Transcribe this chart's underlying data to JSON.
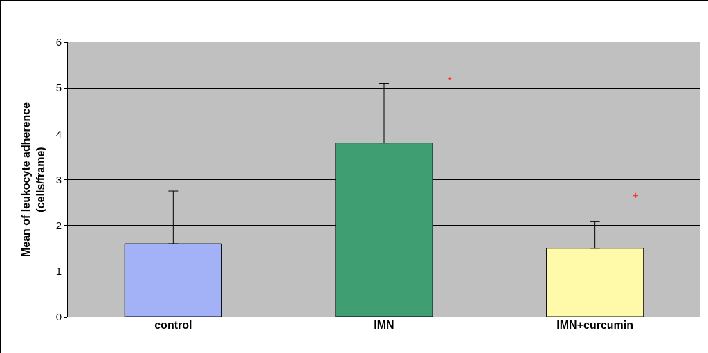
{
  "chart_data": {
    "type": "bar",
    "ylabel": "Mean of leukocyte adherence\n(cells/frame)",
    "categories": [
      "control",
      "IMN",
      "IMN+curcumin"
    ],
    "values": [
      1.6,
      3.8,
      1.5
    ],
    "colors": [
      "#a3b2f7",
      "#3f9e72",
      "#fffaaa"
    ],
    "errors": [
      [
        1.6,
        2.75
      ],
      [
        3.8,
        5.1
      ],
      [
        1.5,
        2.08
      ]
    ],
    "ylim": [
      0,
      6
    ],
    "yticks": [
      0,
      1,
      2,
      3,
      4,
      5,
      6
    ],
    "grid": "y",
    "annotations": [
      "*",
      "+"
    ]
  }
}
